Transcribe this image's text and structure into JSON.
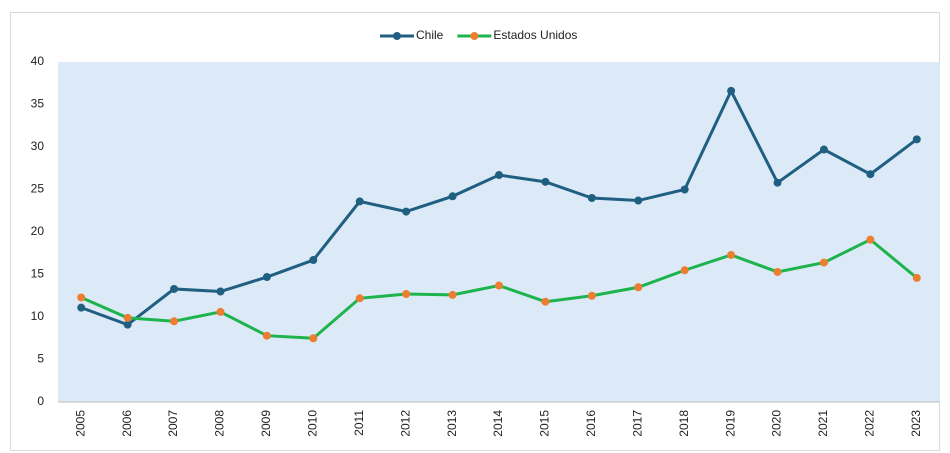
{
  "chart_data": {
    "type": "line",
    "categories": [
      "2005",
      "2006",
      "2007",
      "2008",
      "2009",
      "2010",
      "2011",
      "2012",
      "2013",
      "2014",
      "2015",
      "2016",
      "2017",
      "2018",
      "2019",
      "2020",
      "2021",
      "2022",
      "2023"
    ],
    "series": [
      {
        "name": "Chile",
        "color": "#1f5f82",
        "marker_color": "#1f5f82",
        "values": [
          11.1,
          9.1,
          13.3,
          13.0,
          14.7,
          16.7,
          23.6,
          22.4,
          24.2,
          26.7,
          25.9,
          24.0,
          23.7,
          25.0,
          36.6,
          25.8,
          29.7,
          26.8,
          30.9
        ]
      },
      {
        "name": "Estados Unidos",
        "color": "#1db34d",
        "marker_color": "#ed7d31",
        "values": [
          12.3,
          9.9,
          9.5,
          10.6,
          7.8,
          7.5,
          12.2,
          12.7,
          12.6,
          13.7,
          11.8,
          12.5,
          13.5,
          15.5,
          17.3,
          15.3,
          16.4,
          19.1,
          14.6
        ]
      }
    ],
    "ylim": [
      0,
      40
    ],
    "yticks": [
      0,
      5,
      10,
      15,
      20,
      25,
      30,
      35,
      40
    ],
    "plot_background": "#dce9f6",
    "legend": "top"
  }
}
